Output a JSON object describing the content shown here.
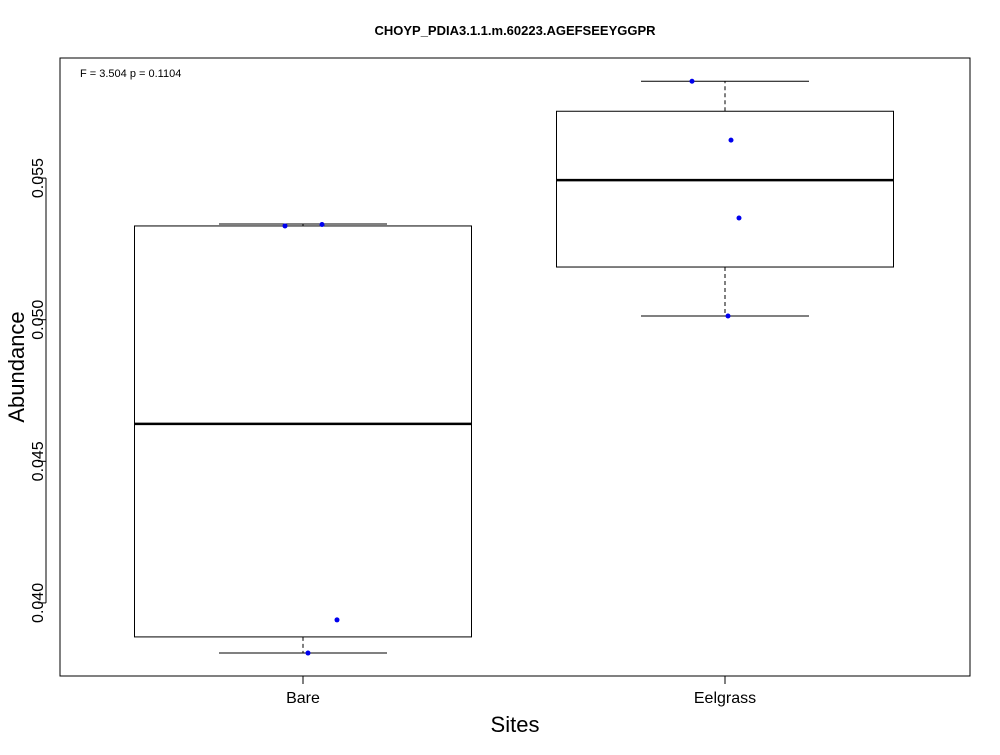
{
  "chart_data": {
    "type": "box",
    "title": "CHOYP_PDIA3.1.1.m.60223.AGEFSEEYGGPR",
    "annotation": "F = 3.504 p = 0.1104",
    "xlabel": "Sites",
    "ylabel": "Abundance",
    "categories": [
      "Bare",
      "Eelgrass"
    ],
    "ylim": [
      0.03742,
      0.05924
    ],
    "yticks": [
      0.04,
      0.045,
      0.05,
      0.055
    ],
    "ytick_labels": [
      "0.040",
      "0.045",
      "0.050",
      "0.055"
    ],
    "grid": false,
    "boxes": [
      {
        "category": "Bare",
        "whisker_low": 0.03823,
        "q1": 0.0388,
        "median": 0.04632,
        "q3": 0.05331,
        "whisker_high": 0.05338,
        "points": [
          0.05331,
          0.05336,
          0.0394,
          0.03823
        ]
      },
      {
        "category": "Eelgrass",
        "whisker_low": 0.05013,
        "q1": 0.05186,
        "median": 0.05493,
        "q3": 0.05736,
        "whisker_high": 0.05842,
        "points": [
          0.05842,
          0.05634,
          0.05359,
          0.05013
        ]
      }
    ],
    "point_color": "#0000ee"
  }
}
